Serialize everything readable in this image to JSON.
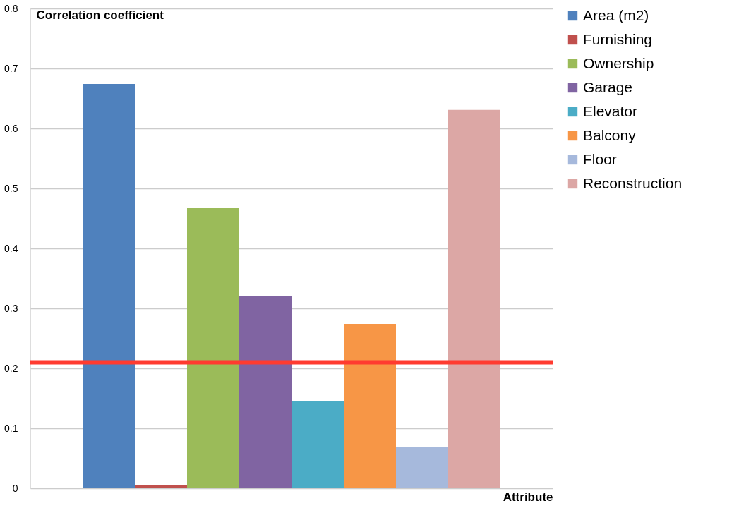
{
  "chart_data": {
    "type": "bar",
    "xlabel": "Attribute",
    "ylabel": "Correlation coefficient",
    "categories": [
      null
    ],
    "series": [
      {
        "name": "Area (m2)",
        "color": "#4f81bd",
        "values": [
          0.674
        ]
      },
      {
        "name": "Furnishing",
        "color": "#c0504d",
        "values": [
          0.006
        ]
      },
      {
        "name": "Ownership",
        "color": "#9bbb59",
        "values": [
          0.467
        ]
      },
      {
        "name": "Garage",
        "color": "#8064a2",
        "values": [
          0.321
        ]
      },
      {
        "name": "Elevator",
        "color": "#4bacc6",
        "values": [
          0.146
        ]
      },
      {
        "name": "Balcony",
        "color": "#f79646",
        "values": [
          0.274
        ]
      },
      {
        "name": "Floor",
        "color": "#a6b9dc",
        "values": [
          0.069
        ]
      },
      {
        "name": "Reconstruction",
        "color": "#dca7a5",
        "values": [
          0.631
        ]
      }
    ],
    "ylim": [
      0,
      0.8
    ],
    "yticks": [
      0,
      0.1,
      0.2,
      0.3,
      0.4,
      0.5,
      0.6,
      0.7,
      0.8
    ],
    "ref_lines": [
      {
        "axis": "y",
        "value": 0.21,
        "color": "#ff3b30"
      }
    ],
    "grid": "y",
    "legend": "right",
    "tick_labels": "y"
  }
}
